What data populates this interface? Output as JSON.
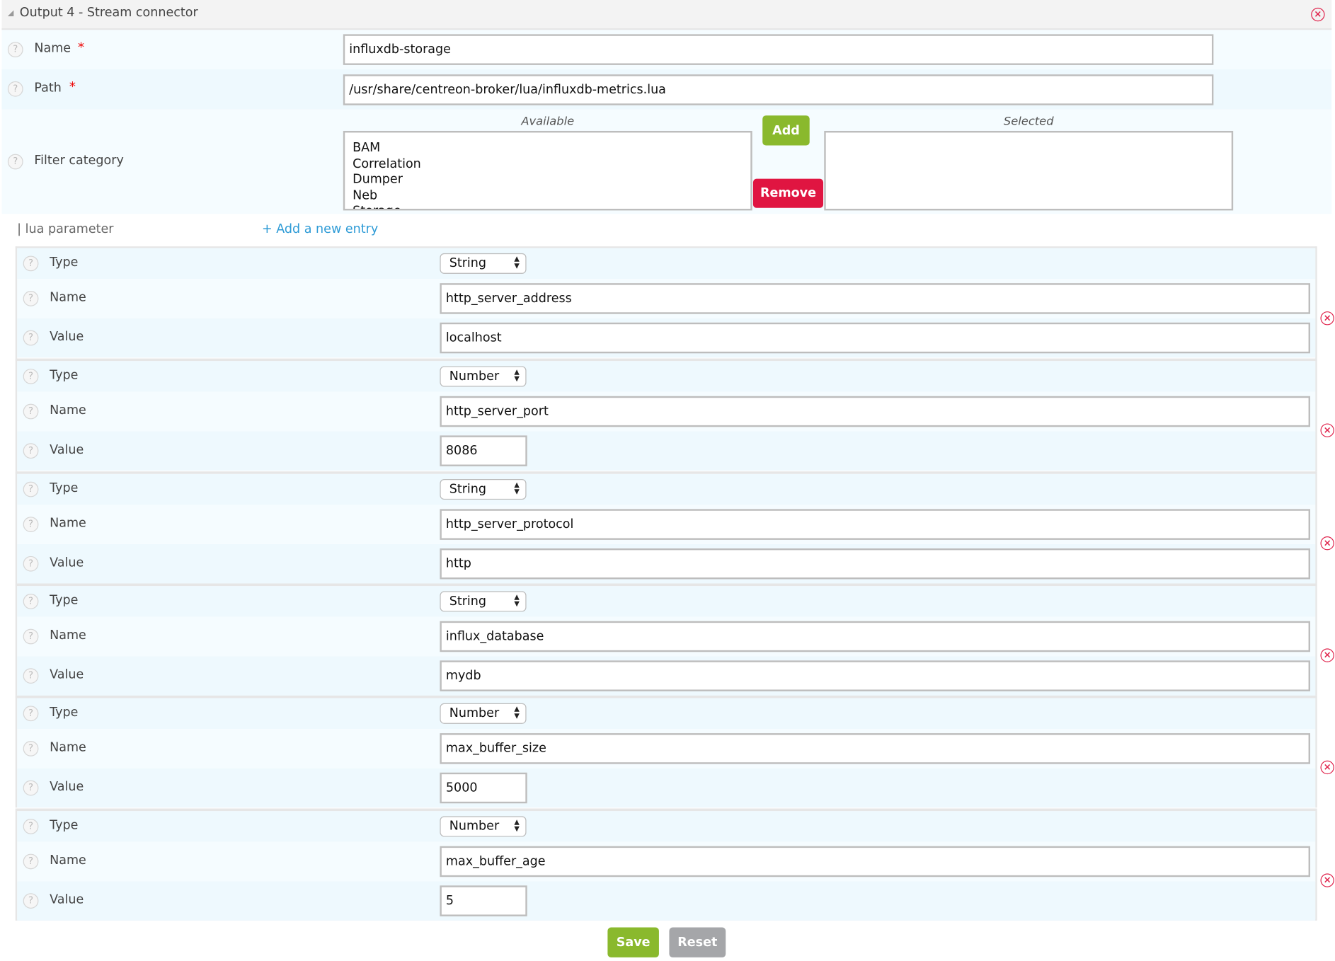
{
  "header": {
    "title": "Output 4 - Stream connector",
    "collapse_icon": "triangle-icon",
    "close_icon": "close-circle-icon"
  },
  "fields": {
    "name": {
      "label": "Name",
      "required": "*",
      "value": "influxdb-storage"
    },
    "path": {
      "label": "Path",
      "required": "*",
      "value": "/usr/share/centreon-broker/lua/influxdb-metrics.lua"
    },
    "filter": {
      "label": "Filter category",
      "available_label": "Available",
      "selected_label": "Selected",
      "available": [
        "BAM",
        "Correlation",
        "Dumper",
        "Neb",
        "Storage"
      ],
      "selected": [],
      "add_label": "Add",
      "remove_label": "Remove"
    }
  },
  "lua": {
    "section_label": "| lua parameter",
    "add_entry": "+ Add a new entry",
    "type_label": "Type",
    "name_label": "Name",
    "value_label": "Value",
    "params": [
      {
        "type": "String",
        "name": "http_server_address",
        "value": "localhost",
        "short": false
      },
      {
        "type": "Number",
        "name": "http_server_port",
        "value": "8086",
        "short": true
      },
      {
        "type": "String",
        "name": "http_server_protocol",
        "value": "http",
        "short": false
      },
      {
        "type": "String",
        "name": "influx_database",
        "value": "mydb",
        "short": false
      },
      {
        "type": "Number",
        "name": "max_buffer_size",
        "value": "5000",
        "short": true
      },
      {
        "type": "Number",
        "name": "max_buffer_age",
        "value": "5",
        "short": true
      }
    ]
  },
  "actions": {
    "save": "Save",
    "reset": "Reset"
  },
  "colors": {
    "accent_green": "#8ab92d",
    "danger_red": "#e01541",
    "reset_gray": "#a5a6a9",
    "link_blue": "#2e9bd6"
  }
}
